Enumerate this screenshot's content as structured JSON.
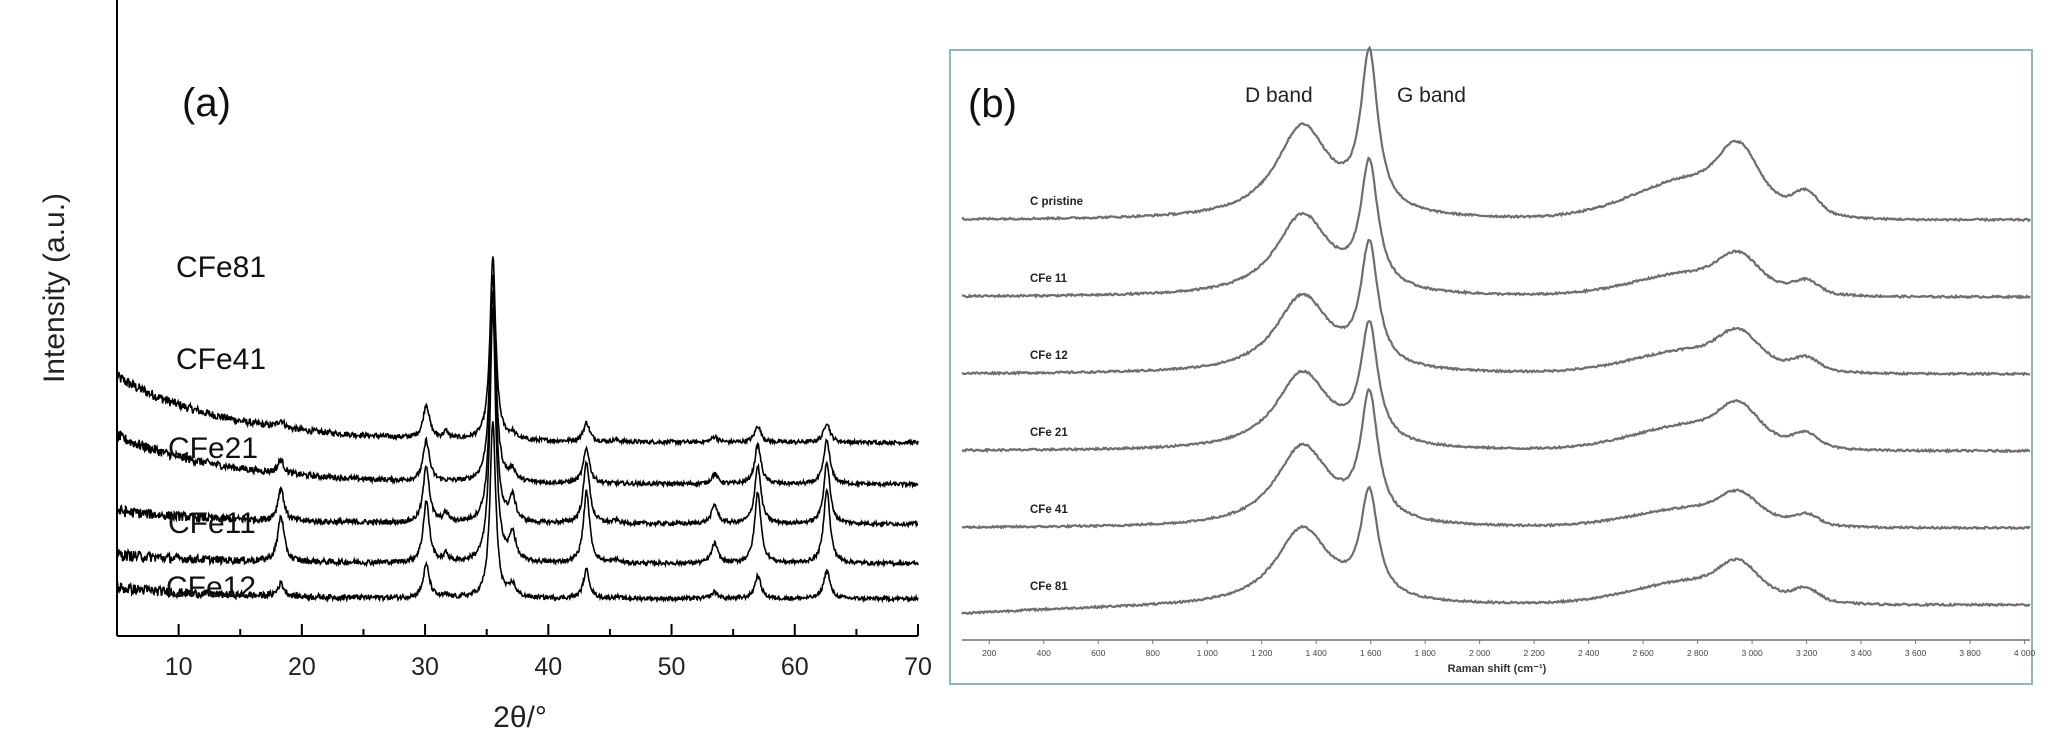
{
  "chart_data": [
    {
      "type": "line",
      "panel_label": "(a)",
      "xlabel": "2θ/°",
      "ylabel": "Intensity (a.u.)",
      "xlim": [
        5,
        70
      ],
      "x_ticks": [
        10,
        20,
        30,
        40,
        50,
        60,
        70
      ],
      "x_tick_labels": [
        "10",
        "20",
        "30",
        "40",
        "50",
        "60",
        "70"
      ],
      "peak_positions": [
        18.3,
        30.1,
        35.5,
        37.1,
        43.1,
        53.5,
        57.0,
        62.6
      ],
      "series": [
        {
          "name": "CFe81",
          "baseline": 7.7,
          "offset": 0.0,
          "peak_heights": [
            0.35,
            1.55,
            8.3,
            0.25,
            0.85,
            0.25,
            0.75,
            0.9
          ],
          "low_angle_rise": 3.0,
          "secondary_peaks": [
            [
              31.7,
              0.3
            ],
            [
              45.5,
              0.1
            ]
          ]
        },
        {
          "name": "CFe41",
          "baseline": 5.8,
          "offset": 0.0,
          "peak_heights": [
            0.6,
            1.85,
            9.5,
            0.5,
            1.6,
            0.45,
            1.8,
            2.0
          ],
          "low_angle_rise": 2.2,
          "secondary_peaks": []
        },
        {
          "name": "CFe21",
          "baseline": 4.0,
          "offset": 0.0,
          "peak_heights": [
            1.5,
            2.6,
            10.5,
            1.1,
            2.8,
            0.85,
            2.65,
            2.8
          ],
          "low_angle_rise": 0.6,
          "secondary_peaks": [
            [
              31.7,
              0.4
            ],
            [
              45.5,
              0.15
            ]
          ]
        },
        {
          "name": "CFe11",
          "baseline": 2.2,
          "offset": 0.0,
          "peak_heights": [
            2.1,
            2.8,
            11.5,
            1.25,
            3.25,
            0.9,
            3.25,
            3.4
          ],
          "low_angle_rise": 0.4,
          "secondary_peaks": [
            [
              31.7,
              0.35
            ],
            [
              45.5,
              0.15
            ]
          ]
        },
        {
          "name": "CFe12",
          "baseline": 0.6,
          "offset": 0.0,
          "peak_heights": [
            0.6,
            1.5,
            8.0,
            0.55,
            1.3,
            0.3,
            1.05,
            1.3
          ],
          "low_angle_rise": 0.5,
          "secondary_peaks": [
            [
              31.7,
              0.1
            ],
            [
              45.5,
              0.08
            ]
          ]
        }
      ]
    },
    {
      "type": "line",
      "panel_label": "(b)",
      "xlabel": "Raman shift (cm⁻¹)",
      "ylabel": "",
      "xlim": [
        100,
        4020
      ],
      "x_ticks": [
        200,
        400,
        600,
        800,
        1000,
        1200,
        1400,
        1600,
        1800,
        2000,
        2200,
        2400,
        2600,
        2800,
        3000,
        3200,
        3400,
        3600,
        3800,
        4000
      ],
      "x_tick_labels": [
        "200",
        "400",
        "600",
        "800",
        "1 000",
        "1 200",
        "1 400",
        "1 600",
        "1 800",
        "2 000",
        "2 200",
        "2 400",
        "2 600",
        "2 800",
        "3 000",
        "3 200",
        "3 400",
        "3 600",
        "3 800",
        "4 000"
      ],
      "annotations": [
        {
          "text": "D band",
          "x": 1350
        },
        {
          "text": "G band",
          "x": 1590
        }
      ],
      "series": [
        {
          "name": "C pristine",
          "baseline": 5.0,
          "d_height": 1.2,
          "g_height": 2.0,
          "second_order": 0.95
        },
        {
          "name": "CFe 11",
          "baseline": 4.0,
          "d_height": 1.05,
          "g_height": 1.6,
          "second_order": 0.55
        },
        {
          "name": "CFe 12",
          "baseline": 3.0,
          "d_height": 1.0,
          "g_height": 1.55,
          "second_order": 0.55
        },
        {
          "name": "CFe 21",
          "baseline": 2.0,
          "d_height": 1.0,
          "g_height": 1.5,
          "second_order": 0.6
        },
        {
          "name": "CFe 41",
          "baseline": 1.0,
          "d_height": 1.05,
          "g_height": 1.6,
          "second_order": 0.45
        },
        {
          "name": "CFe 81",
          "baseline": 0.0,
          "d_height": 1.0,
          "g_height": 1.35,
          "second_order": 0.55
        }
      ]
    }
  ]
}
